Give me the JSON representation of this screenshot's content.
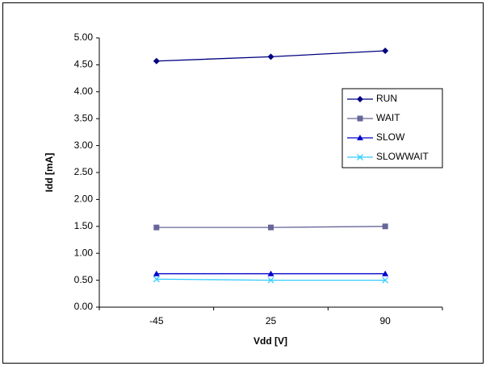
{
  "chart_data": {
    "type": "line",
    "x_label": "Vdd [V]",
    "y_label": "Idd [mA]",
    "categories": [
      "-45",
      "25",
      "90"
    ],
    "series": [
      {
        "name": "RUN",
        "color": "#000080",
        "marker": "diamond",
        "values": [
          4.57,
          4.65,
          4.76
        ]
      },
      {
        "name": "WAIT",
        "color": "#666699",
        "marker": "square",
        "values": [
          1.48,
          1.48,
          1.5
        ]
      },
      {
        "name": "SLOW",
        "color": "#0000cc",
        "marker": "triangle",
        "values": [
          0.62,
          0.62,
          0.62
        ]
      },
      {
        "name": "SLOWWAIT",
        "color": "#33ccff",
        "marker": "x",
        "values": [
          0.52,
          0.5,
          0.5
        ]
      }
    ],
    "ylim": [
      0,
      5
    ],
    "yticks": [
      {
        "value": 0,
        "label": "0.00"
      },
      {
        "value": 0.5,
        "label": "0.50"
      },
      {
        "value": 1,
        "label": "1.00"
      },
      {
        "value": 1.5,
        "label": "1.50"
      },
      {
        "value": 2,
        "label": "2.00"
      },
      {
        "value": 2.5,
        "label": "2.50"
      },
      {
        "value": 3,
        "label": "3.00"
      },
      {
        "value": 3.5,
        "label": "3.50"
      },
      {
        "value": 4,
        "label": "4.00"
      },
      {
        "value": 4.5,
        "label": "4.50"
      },
      {
        "value": 5,
        "label": "5.00"
      }
    ],
    "legend": "right"
  }
}
